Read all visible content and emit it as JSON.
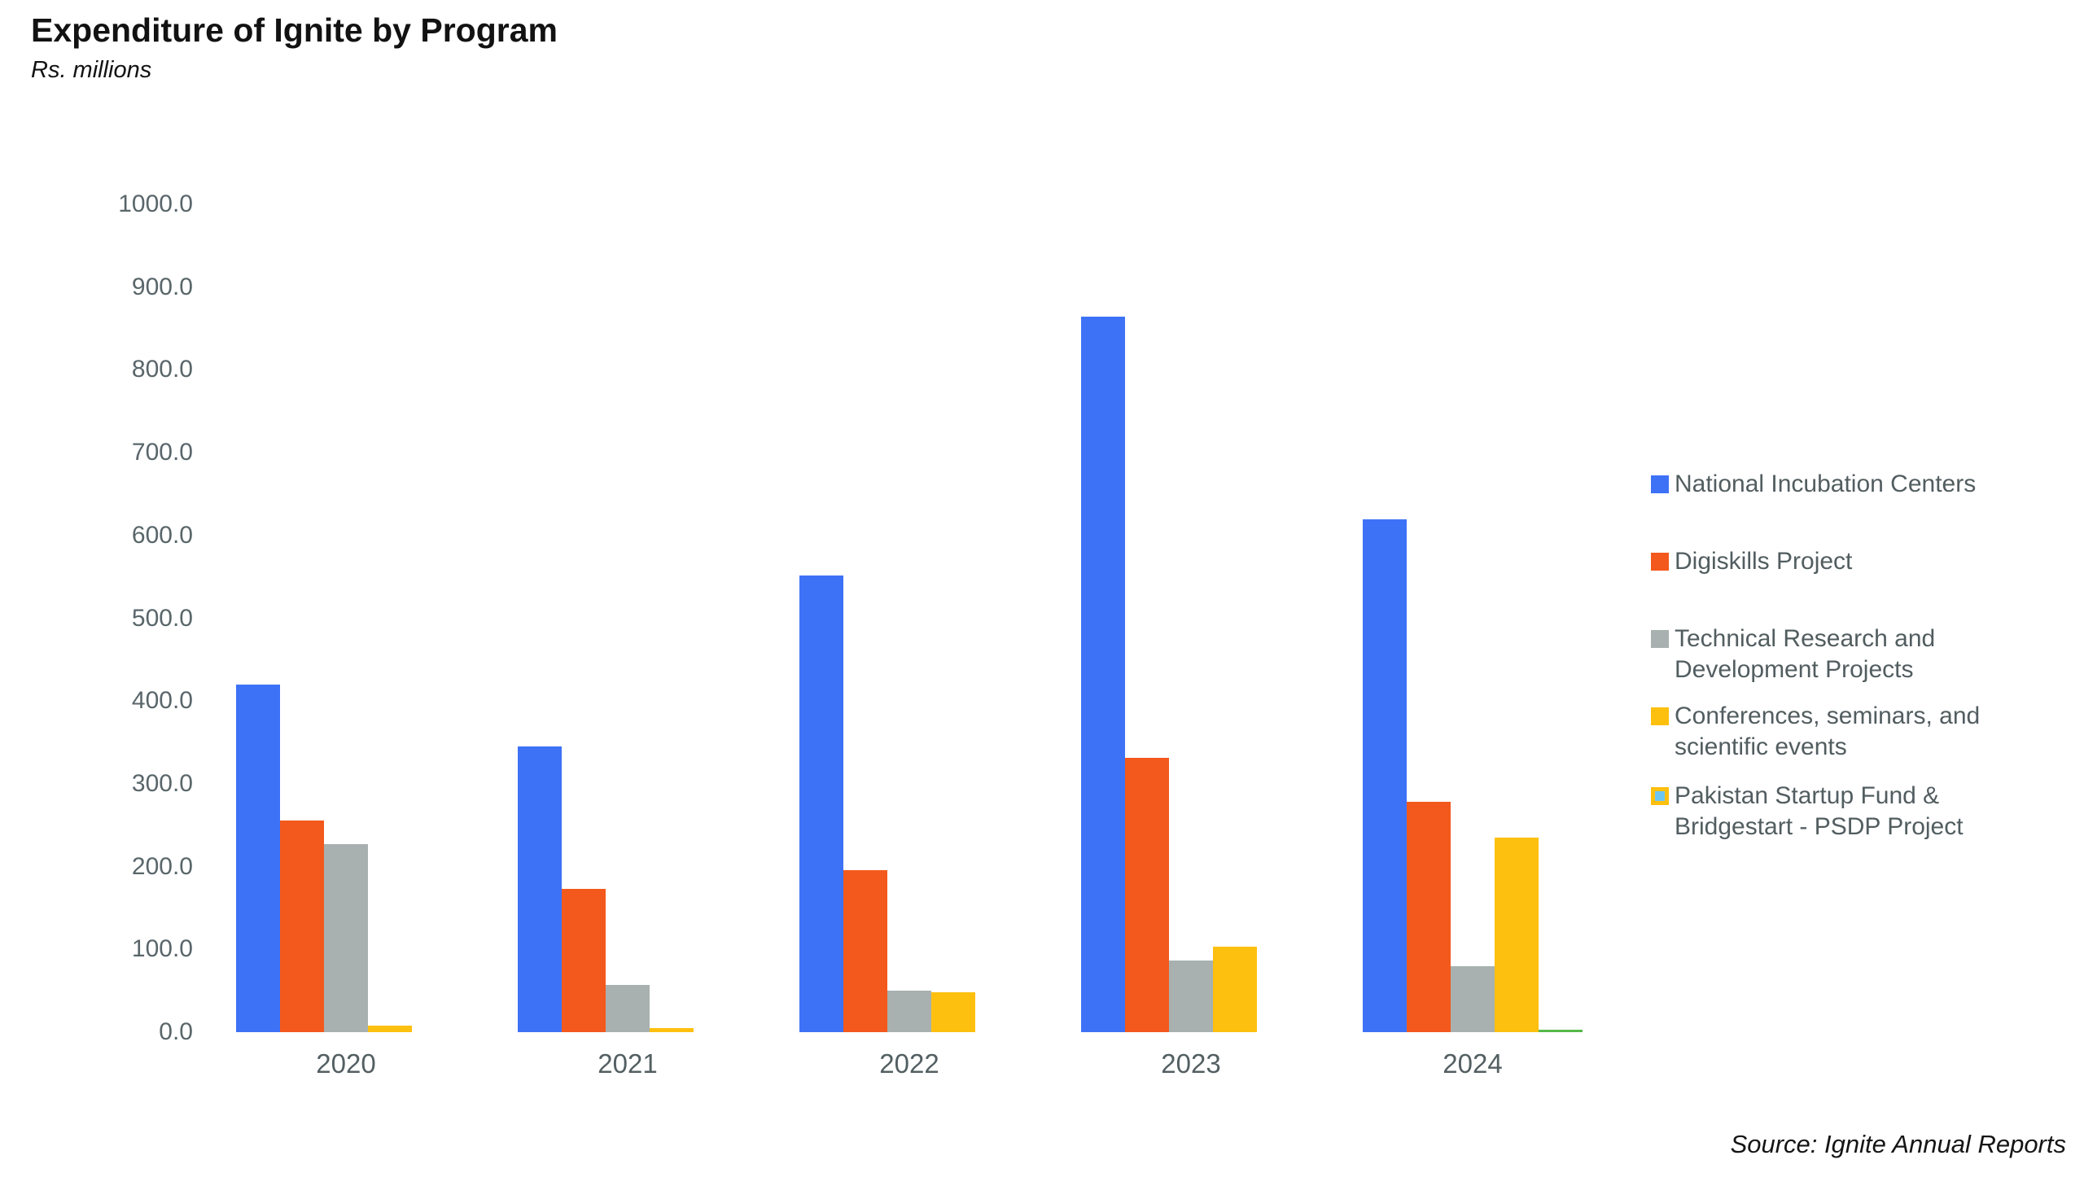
{
  "header": {
    "title": "Expenditure of Ignite by Program",
    "subtitle": "Rs. millions"
  },
  "footer": {
    "source": "Source: Ignite Annual Reports"
  },
  "chart_data": {
    "type": "bar",
    "title": "Expenditure of Ignite by Program",
    "units_label": "Rs. millions",
    "categories": [
      "2020",
      "2021",
      "2022",
      "2023",
      "2024"
    ],
    "series": [
      {
        "name": "National Incubation Centers",
        "color": "#3e72f6",
        "values": [
          420,
          345,
          552,
          864,
          619
        ]
      },
      {
        "name": "Digiskills Project",
        "color": "#f3591c",
        "values": [
          256,
          173,
          196,
          331,
          278
        ]
      },
      {
        "name": "Technical Research and Development Projects",
        "color": "#a8b1b0",
        "values": [
          227,
          57,
          50,
          87,
          80
        ]
      },
      {
        "name": "Conferences, seminars, and scientific events",
        "color": "#fec00f",
        "values": [
          8,
          5,
          48,
          103,
          235
        ]
      },
      {
        "name": "Pakistan Startup Fund & Bridgestart - PSDP Project",
        "color": "#55b848",
        "swatch": {
          "fill": "#6ec6f0",
          "border": "#fec00f"
        },
        "values": [
          0,
          0,
          0,
          0,
          3
        ]
      }
    ],
    "xlabel": "",
    "ylabel": "Rs. millions",
    "ylim": [
      0,
      1000
    ],
    "ytick_step": 100,
    "ytick_labels": [
      "0.0",
      "100.0",
      "200.0",
      "300.0",
      "400.0",
      "500.0",
      "600.0",
      "700.0",
      "800.0",
      "900.0",
      "1000.0"
    ],
    "grid": false,
    "axis_lines": false,
    "legend_position": "right"
  }
}
